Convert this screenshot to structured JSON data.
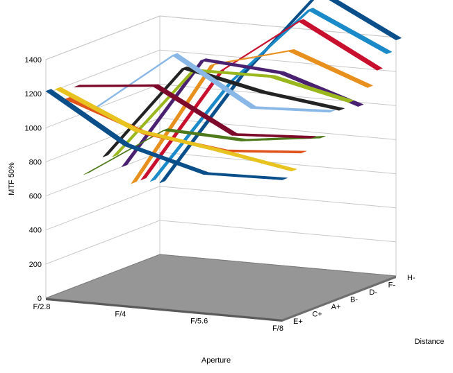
{
  "chart_data": {
    "type": "3d-ribbon-line",
    "ylabel": "MTF 50%",
    "xlabel": "Aperture",
    "zlabel": "Distance",
    "ylim": [
      0,
      1400
    ],
    "y_ticks": [
      "0",
      "200",
      "400",
      "600",
      "800",
      "1000",
      "1200",
      "1400"
    ],
    "x_categories": [
      "F/2.8",
      "F/4",
      "F/5.6",
      "F/8"
    ],
    "z_categories": [
      "E+",
      "C+",
      "A+",
      "B-",
      "D-",
      "F-",
      "H-"
    ],
    "grid": true,
    "legend": "none",
    "series": [
      {
        "depth": 0,
        "color": "#0b4f8a",
        "values": [
          1215,
          935,
          810,
          820
        ]
      },
      {
        "depth": 1,
        "color": "#e8c21e",
        "values": [
          1205,
          1000,
          930,
          850
        ]
      },
      {
        "depth": 2,
        "color": "#e0541c",
        "values": [
          1125,
          960,
          900,
          935
        ]
      },
      {
        "depth": 3,
        "color": "#7d0a2a",
        "values": [
          1175,
          1220,
          975,
          1000
        ]
      },
      {
        "depth": 4,
        "color": "#4f7a1c",
        "values": [
          640,
          940,
          920,
          980
        ]
      },
      {
        "depth": 5,
        "color": "#8ab8e6",
        "values": [
          1005,
          1360,
          1090,
          1110
        ]
      },
      {
        "depth": 6,
        "color": "#232323",
        "values": [
          700,
          1260,
          1160,
          1100
        ]
      },
      {
        "depth": 7,
        "color": "#9ab81e",
        "values": [
          680,
          1225,
          1230,
          1125
        ]
      },
      {
        "depth": 8,
        "color": "#4a2070",
        "values": [
          600,
          1265,
          1230,
          1080
        ]
      },
      {
        "depth": 9,
        "color": "#e8901e",
        "values": [
          480,
          1215,
          1340,
          1170
        ]
      },
      {
        "depth": 10,
        "color": "#c8102e",
        "values": [
          480,
          1160,
          1495,
          1250
        ]
      },
      {
        "depth": 11,
        "color": "#1a8ac8",
        "values": [
          450,
          1075,
          1540,
          1325
        ]
      },
      {
        "depth": 12,
        "color": "#0b4f8a",
        "values": [
          420,
          1080,
          1620,
          1385
        ]
      }
    ]
  }
}
